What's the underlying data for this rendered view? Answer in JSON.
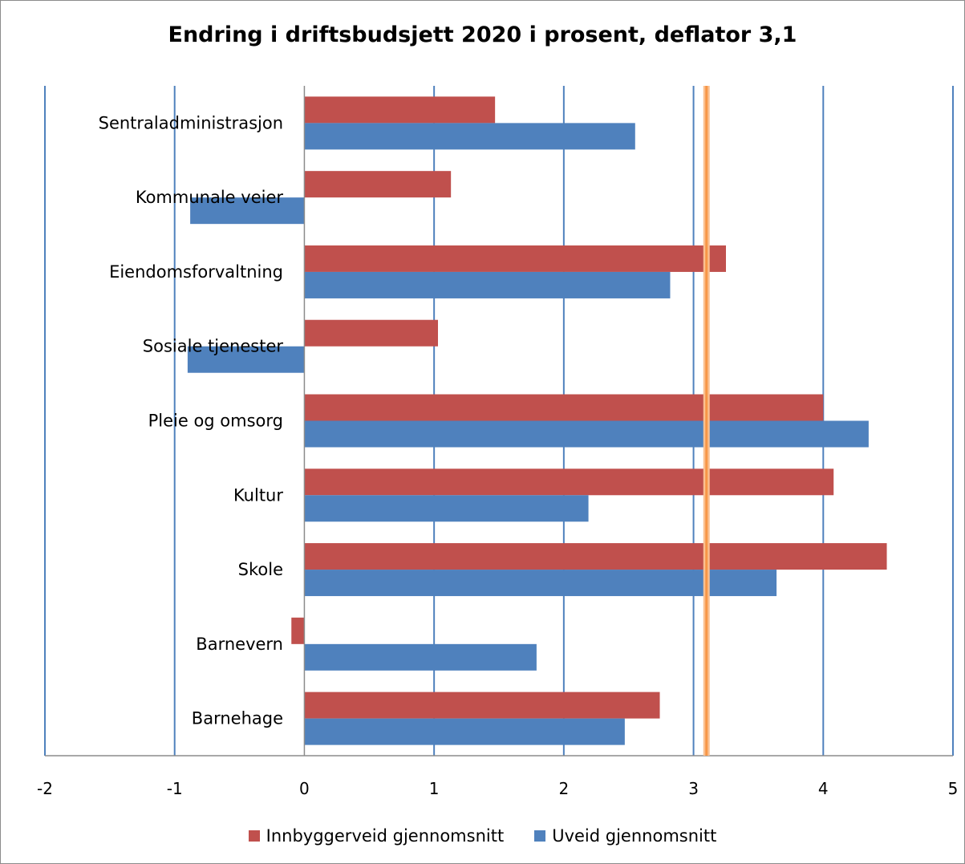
{
  "chart_data": {
    "type": "bar",
    "orientation": "horizontal",
    "title": "Endring i driftsbudsjett 2020 i prosent, deflator 3,1",
    "categories": [
      "Sentraladministrasjon",
      "Kommunale veier",
      "Eiendomsforvaltning",
      "Sosiale tjenester",
      "Pleie og omsorg",
      "Kultur",
      "Skole",
      "Barnevern",
      "Barnehage"
    ],
    "series": [
      {
        "name": "Innbyggerveid gjennomsnitt",
        "color": "#c0504d",
        "values": [
          1.47,
          1.13,
          3.25,
          1.03,
          4.0,
          4.08,
          4.49,
          -0.1,
          2.74
        ]
      },
      {
        "name": "Uveid gjennomsnitt",
        "color": "#4f81bd",
        "values": [
          2.55,
          -0.88,
          2.82,
          -0.9,
          4.35,
          2.19,
          3.64,
          1.79,
          2.47
        ]
      }
    ],
    "xlim": [
      -2,
      5
    ],
    "xticks": [
      "-2",
      "-1",
      "0",
      "1",
      "2",
      "3",
      "4",
      "5"
    ],
    "reference_line": {
      "value": 3.1,
      "color": "#f79646"
    },
    "grid": "vertical",
    "legend_position": "bottom"
  }
}
